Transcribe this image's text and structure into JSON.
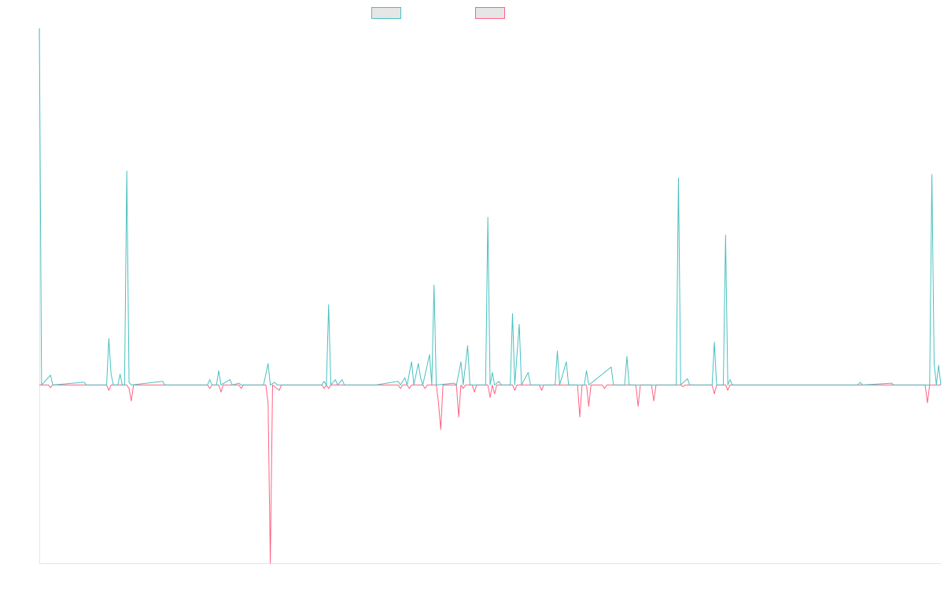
{
  "chart_data": {
    "type": "line",
    "title": "",
    "xlabel": "",
    "ylabel": "",
    "grid": false,
    "legend": "top-center",
    "ylim": [
      -100,
      200
    ],
    "series": [
      {
        "color": "#4bc0c0",
        "points": [
          [
            0,
            200
          ],
          [
            1,
            0
          ],
          [
            5,
            5.5
          ],
          [
            6,
            0
          ],
          [
            20,
            1.5
          ],
          [
            21,
            0
          ],
          [
            30,
            0
          ],
          [
            31,
            26
          ],
          [
            32,
            6
          ],
          [
            33,
            0
          ],
          [
            35,
            0
          ],
          [
            36,
            6
          ],
          [
            37,
            0
          ],
          [
            38,
            0
          ],
          [
            39,
            120
          ],
          [
            40,
            1.5
          ],
          [
            41,
            0
          ],
          [
            55,
            2
          ],
          [
            56,
            0
          ],
          [
            75,
            0
          ],
          [
            76,
            3
          ],
          [
            77,
            0
          ],
          [
            79,
            0
          ],
          [
            80,
            8
          ],
          [
            81,
            0
          ],
          [
            85,
            3
          ],
          [
            86,
            0
          ],
          [
            89,
            1
          ],
          [
            90,
            0
          ],
          [
            100,
            0
          ],
          [
            102,
            12
          ],
          [
            103,
            0
          ],
          [
            105,
            1.5
          ],
          [
            106,
            0
          ],
          [
            126,
            0
          ],
          [
            127,
            2
          ],
          [
            128,
            0
          ],
          [
            129,
            45
          ],
          [
            130,
            0
          ],
          [
            132,
            3
          ],
          [
            133,
            0
          ],
          [
            135,
            3
          ],
          [
            136,
            0
          ],
          [
            150,
            0
          ],
          [
            160,
            2
          ],
          [
            161,
            0
          ],
          [
            163,
            4
          ],
          [
            164,
            0
          ],
          [
            166,
            13
          ],
          [
            167,
            0
          ],
          [
            169,
            12
          ],
          [
            170,
            4
          ],
          [
            171,
            0
          ],
          [
            174,
            17
          ],
          [
            175,
            0
          ],
          [
            176,
            56
          ],
          [
            177,
            0
          ],
          [
            185,
            1
          ],
          [
            186,
            0
          ],
          [
            188,
            13
          ],
          [
            189,
            0
          ],
          [
            191,
            22
          ],
          [
            192,
            0
          ],
          [
            199,
            0
          ],
          [
            200,
            94
          ],
          [
            201,
            0
          ],
          [
            202,
            7
          ],
          [
            203,
            0
          ],
          [
            205,
            2
          ],
          [
            206,
            0
          ],
          [
            210,
            0
          ],
          [
            211,
            40
          ],
          [
            212,
            0
          ],
          [
            214,
            34
          ],
          [
            215,
            0
          ],
          [
            218,
            7
          ],
          [
            219,
            0
          ],
          [
            230,
            0
          ],
          [
            231,
            19
          ],
          [
            232,
            0
          ],
          [
            235,
            13
          ],
          [
            236,
            0
          ],
          [
            243,
            0
          ],
          [
            244,
            8
          ],
          [
            245,
            0
          ],
          [
            255,
            10
          ],
          [
            256,
            0
          ],
          [
            261,
            0
          ],
          [
            262,
            16
          ],
          [
            263,
            0
          ],
          [
            284,
            0
          ],
          [
            285,
            116
          ],
          [
            286,
            0
          ],
          [
            289,
            3.5
          ],
          [
            290,
            0
          ],
          [
            300,
            0
          ],
          [
            301,
            24
          ],
          [
            302,
            0
          ],
          [
            305,
            0
          ],
          [
            306,
            84
          ],
          [
            307,
            0
          ],
          [
            308,
            3
          ],
          [
            309,
            0
          ],
          [
            365,
            0
          ],
          [
            366,
            1.5
          ],
          [
            367,
            0
          ],
          [
            380,
            1
          ],
          [
            381,
            0
          ],
          [
            397,
            0
          ],
          [
            398,
            118
          ],
          [
            399,
            12
          ],
          [
            400,
            0
          ],
          [
            401,
            11
          ],
          [
            402,
            0
          ]
        ]
      },
      {
        "color": "#ff6384",
        "points": [
          [
            0,
            0
          ],
          [
            4,
            0
          ],
          [
            5,
            -1.5
          ],
          [
            6,
            0
          ],
          [
            30,
            0
          ],
          [
            31,
            -3
          ],
          [
            32,
            0
          ],
          [
            39,
            0
          ],
          [
            40,
            -2
          ],
          [
            41,
            -9
          ],
          [
            42,
            0
          ],
          [
            75,
            0
          ],
          [
            76,
            -2
          ],
          [
            77,
            0
          ],
          [
            80,
            0
          ],
          [
            81,
            -4
          ],
          [
            82,
            0
          ],
          [
            89,
            0
          ],
          [
            90,
            -2
          ],
          [
            91,
            0
          ],
          [
            101,
            0
          ],
          [
            102,
            -10
          ],
          [
            103,
            -100
          ],
          [
            104,
            0
          ],
          [
            107,
            -3
          ],
          [
            108,
            0
          ],
          [
            126,
            0
          ],
          [
            127,
            -2
          ],
          [
            128,
            0
          ],
          [
            129,
            -2
          ],
          [
            130,
            0
          ],
          [
            160,
            0
          ],
          [
            161,
            -2
          ],
          [
            162,
            0
          ],
          [
            164,
            0
          ],
          [
            165,
            -2
          ],
          [
            166,
            0
          ],
          [
            171,
            0
          ],
          [
            172,
            -2
          ],
          [
            173,
            0
          ],
          [
            177,
            0
          ],
          [
            178,
            -10
          ],
          [
            179,
            -25
          ],
          [
            180,
            0
          ],
          [
            186,
            0
          ],
          [
            187,
            -18
          ],
          [
            188,
            0
          ],
          [
            189,
            -2
          ],
          [
            190,
            0
          ],
          [
            193,
            0
          ],
          [
            194,
            -4
          ],
          [
            195,
            0
          ],
          [
            200,
            0
          ],
          [
            201,
            -7
          ],
          [
            202,
            0
          ],
          [
            203,
            -5
          ],
          [
            204,
            0
          ],
          [
            211,
            0
          ],
          [
            212,
            -3
          ],
          [
            213,
            0
          ],
          [
            223,
            0
          ],
          [
            224,
            -3
          ],
          [
            225,
            0
          ],
          [
            240,
            0
          ],
          [
            241,
            -18
          ],
          [
            242,
            0
          ],
          [
            244,
            0
          ],
          [
            245,
            -12
          ],
          [
            246,
            0
          ],
          [
            251,
            0
          ],
          [
            252,
            -2
          ],
          [
            253,
            0
          ],
          [
            266,
            0
          ],
          [
            267,
            -12
          ],
          [
            268,
            0
          ],
          [
            273,
            0
          ],
          [
            274,
            -9
          ],
          [
            275,
            0
          ],
          [
            286,
            0
          ],
          [
            287,
            -1
          ],
          [
            288,
            0
          ],
          [
            300,
            0
          ],
          [
            301,
            -5
          ],
          [
            302,
            0
          ],
          [
            306,
            0
          ],
          [
            307,
            -3
          ],
          [
            308,
            0
          ],
          [
            395,
            0
          ],
          [
            396,
            -10
          ],
          [
            397,
            0
          ],
          [
            402,
            0
          ]
        ]
      }
    ]
  }
}
